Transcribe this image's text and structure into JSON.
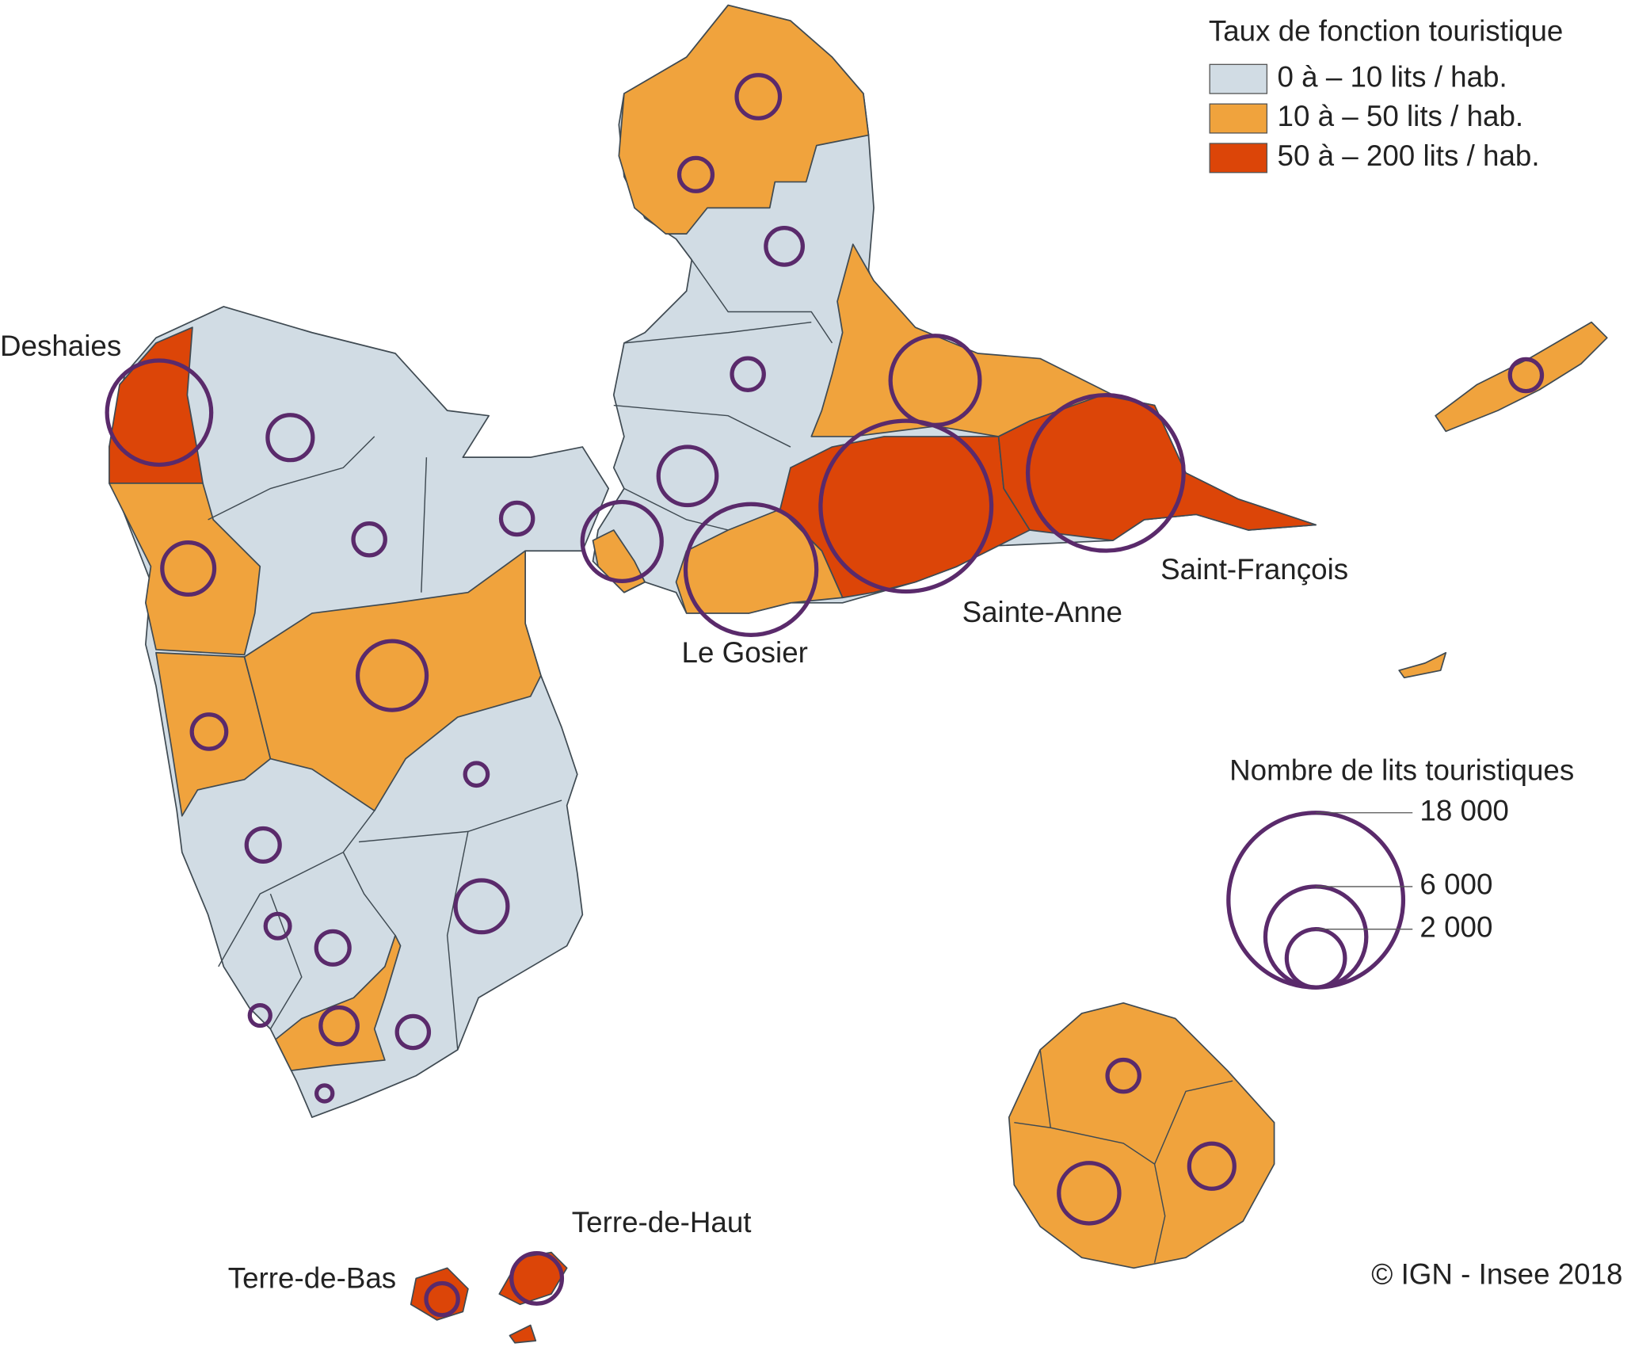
{
  "legend_rate": {
    "title": "Taux de fonction touristique",
    "items": [
      {
        "label": "0 à – 10 lits / hab.",
        "color": "#d1dce4"
      },
      {
        "label": "10 à –  50 lits / hab.",
        "color": "#f0a33d"
      },
      {
        "label": "50 à – 200 lits / hab.",
        "color": "#dc4508"
      }
    ]
  },
  "legend_size": {
    "title": "Nombre de lits touristiques",
    "values": [
      {
        "value": 18000,
        "label": "18 000"
      },
      {
        "value": 6000,
        "label": "6 000"
      },
      {
        "value": 2000,
        "label": "2 000"
      }
    ]
  },
  "place_labels": [
    "Deshaies",
    "Le Gosier",
    "Sainte-Anne",
    "Saint-François",
    "Terre-de-Haut",
    "Terre-de-Bas"
  ],
  "bed_counts": [
    6400,
    1200,
    1600,
    600,
    2800,
    700,
    600,
    1100,
    650,
    800,
    600,
    2000,
    3700,
    10100,
    4700,
    17200,
    14300,
    600,
    300,
    650,
    1600,
    350,
    650,
    250,
    800,
    600,
    150,
    600,
    1200,
    2150,
    600,
    1500
  ],
  "credit": "© IGN - Insee 2018"
}
